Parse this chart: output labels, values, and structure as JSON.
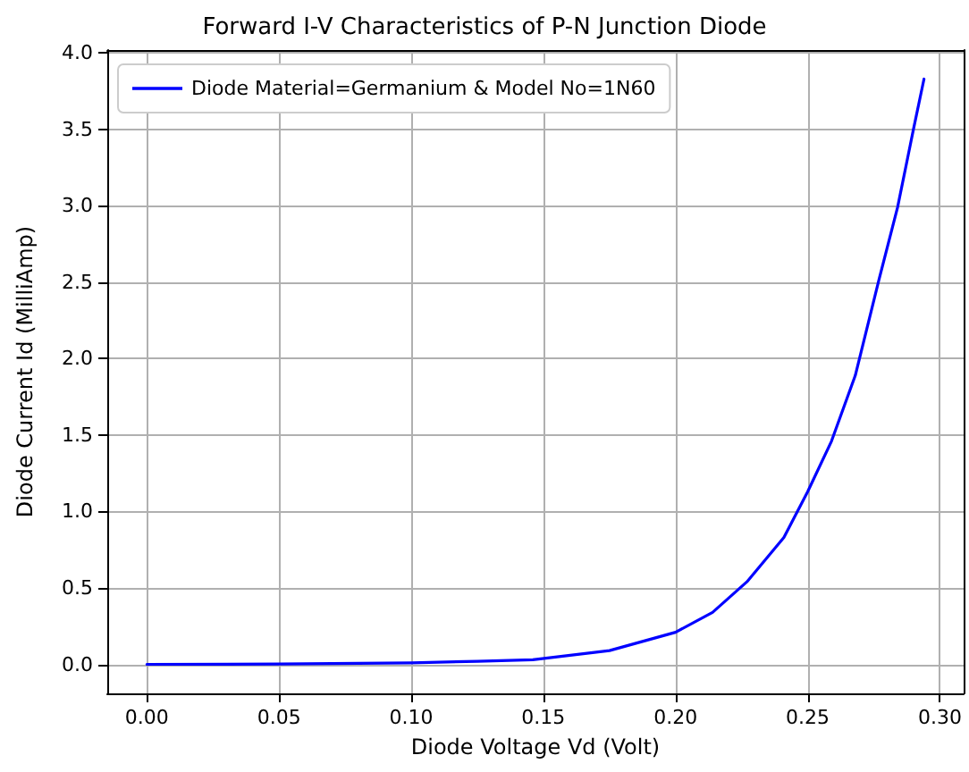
{
  "chart_data": {
    "type": "line",
    "title": "Forward I-V Characteristics of P-N Junction Diode",
    "xlabel": "Diode Voltage Vd (Volt)",
    "ylabel": "Diode Current Id (MilliAmp)",
    "x": [
      0,
      0.05,
      0.1,
      0.125,
      0.146,
      0.175,
      0.2,
      0.214,
      0.227,
      0.241,
      0.25,
      0.259,
      0.268,
      0.277,
      0.284,
      0.29,
      0.294
    ],
    "series": [
      {
        "name": "Diode Material=Germanium & Model No=1N60",
        "color": "#0000ff",
        "values": [
          0,
          0.002,
          0.01,
          0.02,
          0.03,
          0.09,
          0.21,
          0.34,
          0.54,
          0.83,
          1.13,
          1.46,
          1.89,
          2.52,
          2.99,
          3.5,
          3.83
        ]
      }
    ],
    "xlim": [
      -0.015,
      0.309
    ],
    "ylim": [
      -0.19,
      4.02
    ],
    "xticks": [
      {
        "value": 0,
        "label": "0.00"
      },
      {
        "value": 0.05,
        "label": "0.05"
      },
      {
        "value": 0.1,
        "label": "0.10"
      },
      {
        "value": 0.15,
        "label": "0.15"
      },
      {
        "value": 0.2,
        "label": "0.20"
      },
      {
        "value": 0.25,
        "label": "0.25"
      },
      {
        "value": 0.3,
        "label": "0.30"
      }
    ],
    "yticks": [
      {
        "value": 0,
        "label": "0.0"
      },
      {
        "value": 0.5,
        "label": "0.5"
      },
      {
        "value": 1,
        "label": "1.0"
      },
      {
        "value": 1.5,
        "label": "1.5"
      },
      {
        "value": 2,
        "label": "2.0"
      },
      {
        "value": 2.5,
        "label": "2.5"
      },
      {
        "value": 3,
        "label": "3.0"
      },
      {
        "value": 3.5,
        "label": "3.5"
      },
      {
        "value": 4,
        "label": "4.0"
      }
    ],
    "grid": true,
    "legend": "top left",
    "marker": "none",
    "line_style": "solid"
  }
}
